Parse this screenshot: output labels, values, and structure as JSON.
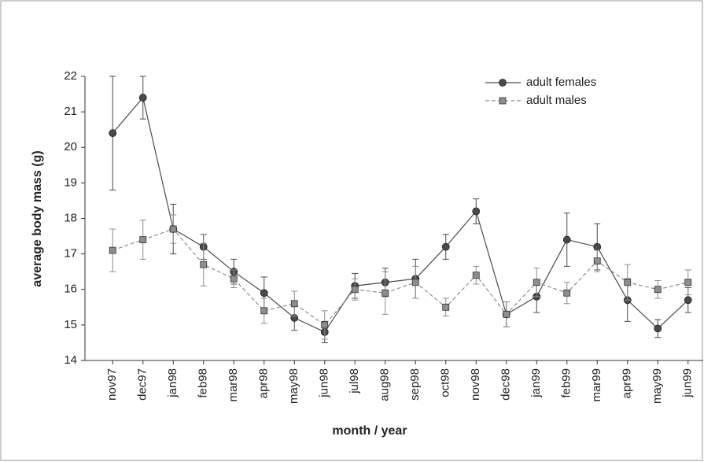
{
  "chart_data": {
    "type": "line",
    "xlabel": "month / year",
    "ylabel": "average body mass (g)",
    "categories": [
      "nov97",
      "dec97",
      "jan98",
      "feb98",
      "mar98",
      "apr98",
      "may98",
      "jun98",
      "jul98",
      "aug98",
      "sep98",
      "oct98",
      "nov98",
      "dec98",
      "jan99",
      "feb99",
      "mar99",
      "apr99",
      "may99",
      "jun99"
    ],
    "series": [
      {
        "name": "adult females",
        "color": "#4a4a4a",
        "marker": "circle",
        "dash": false,
        "values": [
          20.4,
          21.4,
          17.7,
          17.2,
          16.5,
          15.9,
          15.2,
          14.8,
          16.1,
          16.2,
          16.3,
          17.2,
          18.2,
          15.3,
          15.8,
          17.4,
          17.2,
          15.7,
          14.9,
          15.7
        ],
        "errors": [
          1.6,
          0.6,
          0.7,
          0.35,
          0.35,
          0.45,
          0.35,
          0.3,
          0.35,
          0.4,
          0.55,
          0.35,
          0.35,
          0.35,
          0.45,
          0.75,
          0.65,
          0.6,
          0.25,
          0.35
        ]
      },
      {
        "name": "adult males",
        "color": "#8e8e8e",
        "marker": "square",
        "dash": true,
        "values": [
          17.1,
          17.4,
          17.7,
          16.7,
          16.3,
          15.4,
          15.6,
          15.0,
          16.0,
          15.9,
          16.2,
          15.5,
          16.4,
          15.3,
          16.2,
          15.9,
          16.8,
          16.2,
          16.0,
          16.2
        ],
        "errors": [
          0.6,
          0.55,
          0.4,
          0.6,
          0.25,
          0.35,
          0.35,
          0.4,
          0.3,
          0.6,
          0.45,
          0.25,
          0.25,
          0.35,
          0.4,
          0.3,
          0.3,
          0.5,
          0.25,
          0.35
        ]
      }
    ],
    "ylim": [
      14,
      22
    ],
    "yticks": [
      14,
      15,
      16,
      17,
      18,
      19,
      20,
      21,
      22
    ],
    "grid": false,
    "legend": "upper right"
  }
}
